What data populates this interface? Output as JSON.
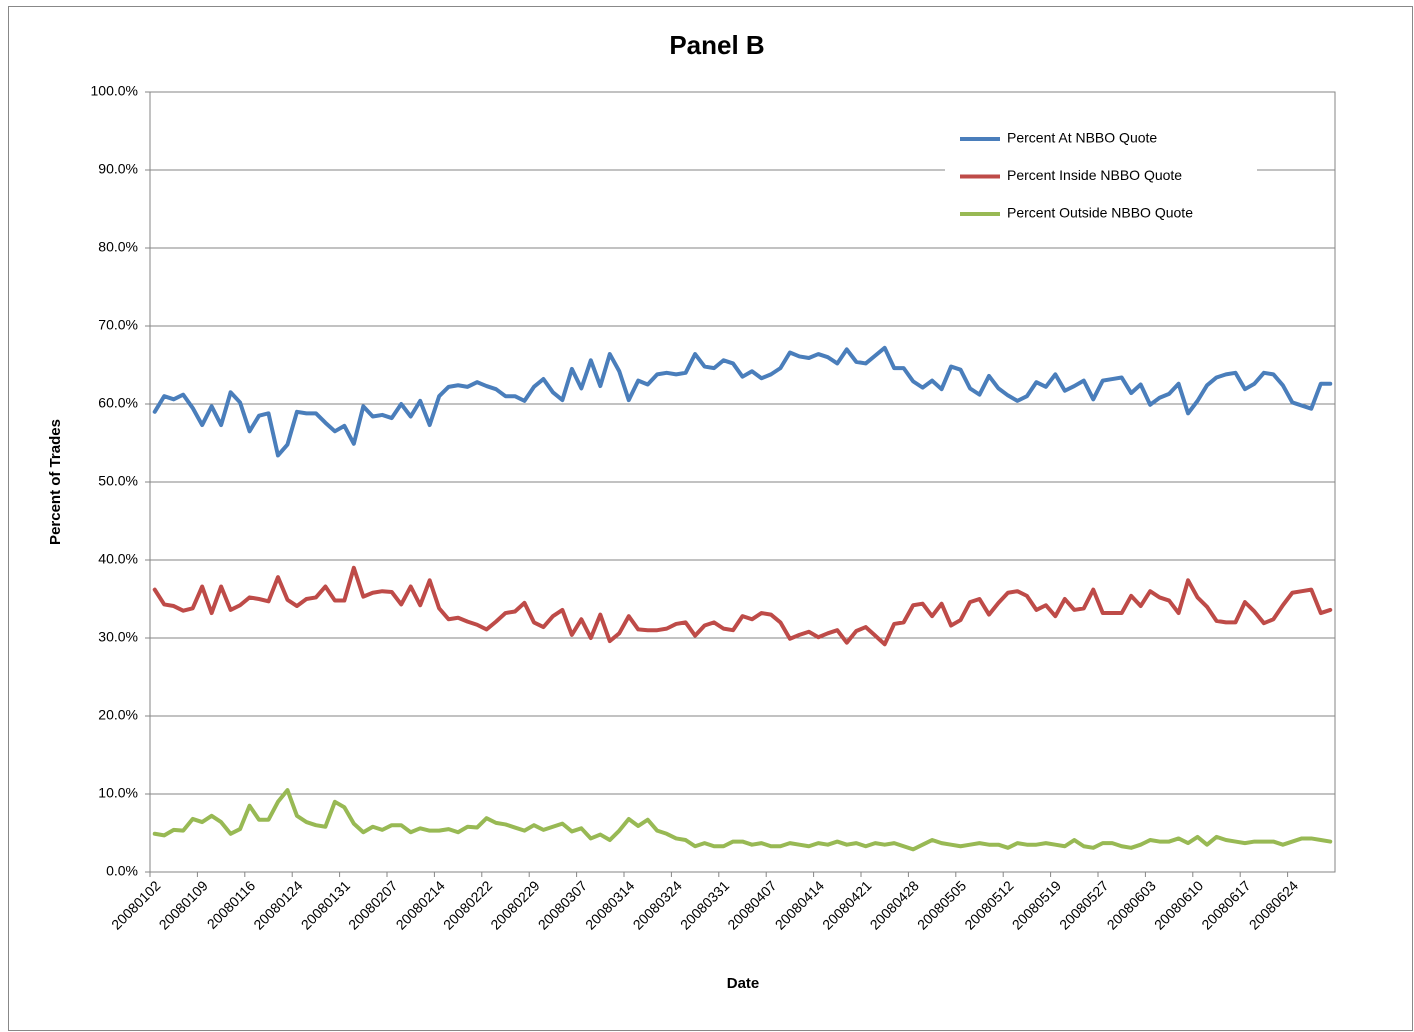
{
  "chart_data": {
    "type": "line",
    "title": "Panel B",
    "x_label": "Date",
    "y_label": "Percent of Trades",
    "categories": [
      "20080102",
      null,
      null,
      null,
      null,
      "20080109",
      null,
      null,
      null,
      null,
      "20080116",
      null,
      null,
      null,
      null,
      "20080124",
      null,
      null,
      null,
      null,
      "20080131",
      null,
      null,
      null,
      null,
      "20080207",
      null,
      null,
      null,
      null,
      "20080214",
      null,
      null,
      null,
      null,
      "20080222",
      null,
      null,
      null,
      null,
      "20080229",
      null,
      null,
      null,
      null,
      "20080307",
      null,
      null,
      null,
      null,
      "20080314",
      null,
      null,
      null,
      null,
      "20080324",
      null,
      null,
      null,
      null,
      "20080331",
      null,
      null,
      null,
      null,
      "20080407",
      null,
      null,
      null,
      null,
      "20080414",
      null,
      null,
      null,
      null,
      "20080421",
      null,
      null,
      null,
      null,
      "20080428",
      null,
      null,
      null,
      null,
      "20080505",
      null,
      null,
      null,
      null,
      "20080512",
      null,
      null,
      null,
      null,
      "20080519",
      null,
      null,
      null,
      null,
      "20080527",
      null,
      null,
      null,
      null,
      "20080603",
      null,
      null,
      null,
      null,
      "20080610",
      null,
      null,
      null,
      null,
      "20080617",
      null,
      null,
      null,
      null,
      "20080624",
      null,
      null,
      null,
      null
    ],
    "series": [
      {
        "name": "Percent At NBBO Quote",
        "color": "#4a7ebb",
        "values": [
          59.0,
          61.0,
          60.6,
          61.2,
          59.5,
          57.3,
          59.7,
          57.3,
          61.5,
          60.2,
          56.5,
          58.5,
          58.8,
          53.4,
          54.8,
          59.0,
          58.8,
          58.8,
          57.6,
          56.5,
          57.2,
          54.9,
          59.7,
          58.4,
          58.6,
          58.2,
          60.0,
          58.4,
          60.4,
          57.3,
          61.0,
          62.2,
          62.4,
          62.2,
          62.8,
          62.3,
          61.9,
          61.0,
          61.0,
          60.4,
          62.2,
          63.2,
          61.5,
          60.5,
          64.5,
          62.0,
          65.6,
          62.3,
          66.4,
          64.2,
          60.5,
          63.0,
          62.5,
          63.8,
          64.0,
          63.8,
          64.0,
          66.4,
          64.8,
          64.6,
          65.6,
          65.2,
          63.5,
          64.2,
          63.3,
          63.8,
          64.6,
          66.6,
          66.1,
          65.9,
          66.4,
          66.0,
          65.2,
          67.0,
          65.4,
          65.2,
          66.2,
          67.2,
          64.6,
          64.6,
          62.9,
          62.1,
          63.0,
          61.9,
          64.8,
          64.4,
          62.0,
          61.2,
          63.6,
          62.0,
          61.1,
          60.4,
          61.0,
          62.8,
          62.2,
          63.8,
          61.7,
          62.3,
          63.0,
          60.6,
          63.0,
          63.2,
          63.4,
          61.4,
          62.5,
          59.9,
          60.8,
          61.3,
          62.6,
          58.8,
          60.4,
          62.4,
          63.4,
          63.8,
          64.0,
          61.9,
          62.6,
          64.0,
          63.8,
          62.4,
          60.2,
          59.8,
          59.4,
          62.6,
          62.6
        ]
      },
      {
        "name": "Percent Inside  NBBO Quote",
        "color": "#be4b48",
        "values": [
          36.2,
          34.3,
          34.1,
          33.5,
          33.8,
          36.6,
          33.2,
          36.6,
          33.6,
          34.2,
          35.2,
          35.0,
          34.7,
          37.8,
          34.9,
          34.1,
          35.0,
          35.2,
          36.6,
          34.8,
          34.8,
          39.0,
          35.3,
          35.8,
          36.0,
          35.9,
          34.3,
          36.6,
          34.2,
          37.4,
          33.8,
          32.4,
          32.6,
          32.1,
          31.7,
          31.1,
          32.1,
          33.2,
          33.4,
          34.5,
          32.0,
          31.4,
          32.8,
          33.6,
          30.4,
          32.4,
          30.0,
          33.0,
          29.6,
          30.6,
          32.8,
          31.1,
          31.0,
          31.0,
          31.2,
          31.8,
          32.0,
          30.3,
          31.6,
          32.0,
          31.2,
          31.0,
          32.8,
          32.4,
          33.2,
          33.0,
          32.0,
          29.9,
          30.4,
          30.8,
          30.1,
          30.6,
          31.0,
          29.4,
          30.9,
          31.4,
          30.3,
          29.2,
          31.8,
          32.0,
          34.2,
          34.4,
          32.8,
          34.4,
          31.6,
          32.3,
          34.6,
          35.0,
          33.0,
          34.5,
          35.8,
          36.0,
          35.4,
          33.6,
          34.2,
          32.8,
          35.0,
          33.6,
          33.8,
          36.2,
          33.2,
          33.2,
          33.2,
          35.4,
          34.1,
          36.0,
          35.2,
          34.8,
          33.2,
          37.4,
          35.2,
          34.0,
          32.2,
          32.0,
          32.0,
          34.6,
          33.4,
          31.9,
          32.4,
          34.2,
          35.8,
          36.0,
          36.2,
          33.2,
          33.6
        ]
      },
      {
        "name": "Percent Outside  NBBO Quote",
        "color": "#98b954",
        "values": [
          4.9,
          4.7,
          5.4,
          5.3,
          6.8,
          6.4,
          7.2,
          6.4,
          4.9,
          5.5,
          8.5,
          6.7,
          6.7,
          9.0,
          10.5,
          7.2,
          6.4,
          6.0,
          5.8,
          9.0,
          8.3,
          6.2,
          5.1,
          5.8,
          5.4,
          6.0,
          6.0,
          5.1,
          5.6,
          5.3,
          5.3,
          5.5,
          5.1,
          5.8,
          5.7,
          6.9,
          6.3,
          6.1,
          5.7,
          5.3,
          6.0,
          5.4,
          5.8,
          6.2,
          5.2,
          5.6,
          4.3,
          4.8,
          4.1,
          5.3,
          6.8,
          5.9,
          6.7,
          5.3,
          4.9,
          4.3,
          4.1,
          3.3,
          3.7,
          3.3,
          3.3,
          3.9,
          3.9,
          3.5,
          3.7,
          3.3,
          3.3,
          3.7,
          3.5,
          3.3,
          3.7,
          3.5,
          3.9,
          3.5,
          3.7,
          3.3,
          3.7,
          3.5,
          3.7,
          3.3,
          2.9,
          3.5,
          4.1,
          3.7,
          3.5,
          3.3,
          3.5,
          3.7,
          3.5,
          3.5,
          3.1,
          3.7,
          3.5,
          3.5,
          3.7,
          3.5,
          3.3,
          4.1,
          3.3,
          3.1,
          3.7,
          3.7,
          3.3,
          3.1,
          3.5,
          4.1,
          3.9,
          3.9,
          4.3,
          3.7,
          4.5,
          3.5,
          4.5,
          4.1,
          3.9,
          3.7,
          3.9,
          3.9,
          3.9,
          3.5,
          3.9,
          4.3,
          4.3,
          4.1,
          3.9
        ]
      }
    ],
    "ylim": [
      0,
      100
    ],
    "yticks": [
      {
        "value": 0,
        "label": "0.0%"
      },
      {
        "value": 10,
        "label": "10.0%"
      },
      {
        "value": 20,
        "label": "20.0%"
      },
      {
        "value": 30,
        "label": "30.0%"
      },
      {
        "value": 40,
        "label": "40.0%"
      },
      {
        "value": 50,
        "label": "50.0%"
      },
      {
        "value": 60,
        "label": "60.0%"
      },
      {
        "value": 70,
        "label": "70.0%"
      },
      {
        "value": 80,
        "label": "80.0%"
      },
      {
        "value": 90,
        "label": "90.0%"
      },
      {
        "value": 100,
        "label": "100.0%"
      }
    ],
    "grid": true,
    "legend": "top-right"
  }
}
